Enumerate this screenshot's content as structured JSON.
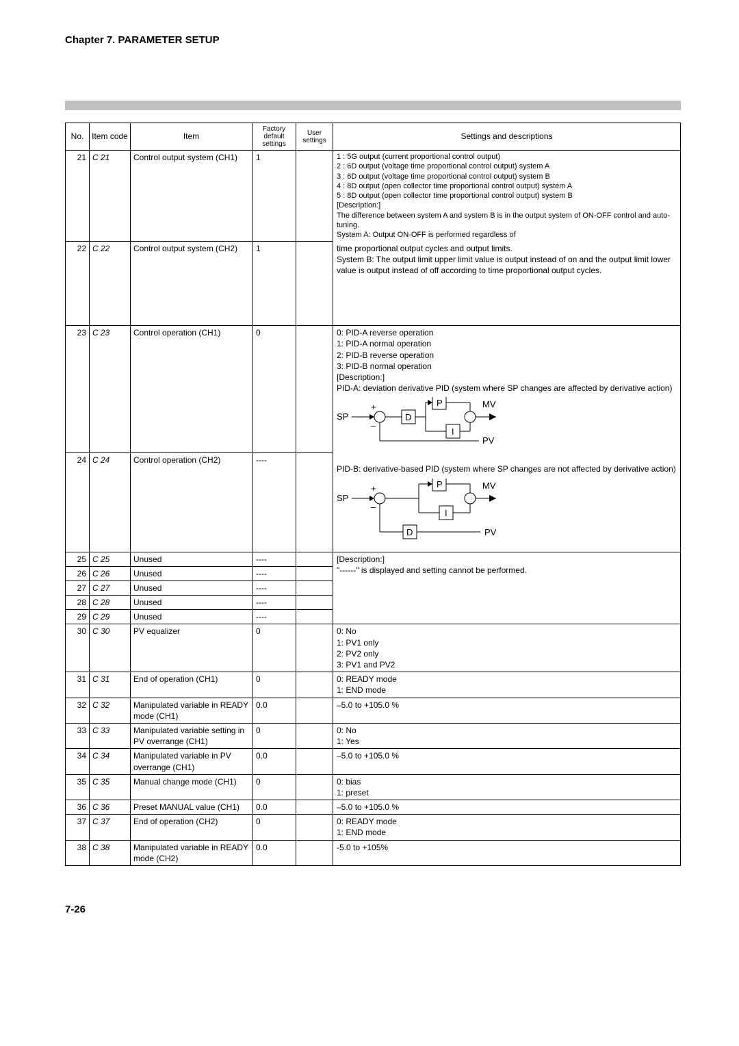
{
  "chapter_title": "Chapter 7. PARAMETER SETUP",
  "page_number": "7-26",
  "columns": {
    "no": "No.",
    "code": "Item code",
    "item": "Item",
    "factory": "Factory default settings",
    "user": "User settings",
    "desc": "Settings and descriptions"
  },
  "rows": [
    {
      "no": "21",
      "code": "C 21",
      "item": "Control output system (CH1)",
      "factory": "1",
      "desc": "1 : 5G output (current proportional control output)\n2 : 6D output (voltage time proportional control output) system A\n3 : 6D output (voltage time proportional control output) system B\n4 : 8D output (open collector time proportional control output) system A\n5 : 8D output (open collector time proportional control output) system B\n[Description:]\nThe difference between system A and system B is in the output system of ON-OFF control and auto-tuning.\nSystem A: Output ON-OFF is performed regardless of"
    },
    {
      "no": "22",
      "code": "C 22",
      "item": "Control output system (CH2)",
      "factory": "1",
      "desc": "time proportional output cycles and output limits.\nSystem B: The output limit upper limit value is output instead of on and the output limit lower value is output instead of off according to time proportional output cycles.",
      "mergeDescTop": true,
      "tall": true
    },
    {
      "no": "23",
      "code": "C 23",
      "item": "Control operation (CH1)",
      "factory": "0",
      "desc": "0: PID-A reverse operation\n1: PID-A normal operation\n2: PID-B reverse operation\n3: PID-B normal operation\n[Description:]\nPID-A: deviation derivative PID (system where SP changes are affected by derivative action)",
      "diagram": "A"
    },
    {
      "no": "24",
      "code": "C 24",
      "item": "Control operation (CH2)",
      "factory": "----",
      "desc": "PID-B: derivative-based PID (system where SP changes are not affected by derivative action)",
      "mergeDescTop": true,
      "diagram": "B",
      "tall2": true
    },
    {
      "no": "25",
      "code": "C 25",
      "item": "Unused",
      "factory": "----",
      "desc": "[Description:]\n\"------\" is displayed and setting cannot be performed.",
      "descSpan": 5
    },
    {
      "no": "26",
      "code": "C 26",
      "item": "Unused",
      "factory": "----",
      "noDesc": true
    },
    {
      "no": "27",
      "code": "C 27",
      "item": "Unused",
      "factory": "----",
      "noDesc": true
    },
    {
      "no": "28",
      "code": "C 28",
      "item": "Unused",
      "factory": "----",
      "noDesc": true
    },
    {
      "no": "29",
      "code": "C 29",
      "item": "Unused",
      "factory": "----",
      "noDesc": true
    },
    {
      "no": "30",
      "code": "C 30",
      "item": "PV equalizer",
      "factory": "0",
      "desc": "0: No\n1: PV1 only\n2: PV2 only\n3: PV1 and PV2"
    },
    {
      "no": "31",
      "code": "C 31",
      "item": "End of operation (CH1)",
      "factory": "0",
      "desc": "0: READY mode\n1: END mode"
    },
    {
      "no": "32",
      "code": "C 32",
      "item": "Manipulated variable in READY mode (CH1)",
      "factory": "0.0",
      "desc": "–5.0 to +105.0 %"
    },
    {
      "no": "33",
      "code": "C 33",
      "item": "Manipulated variable setting in PV overrange (CH1)",
      "factory": "0",
      "desc": "0: No\n1: Yes"
    },
    {
      "no": "34",
      "code": "C 34",
      "item": "Manipulated variable in PV overrange (CH1)",
      "factory": "0.0",
      "desc": "–5.0 to +105.0 %"
    },
    {
      "no": "35",
      "code": "C 35",
      "item": "Manual change mode (CH1)",
      "factory": "0",
      "desc": "0: bias\n1: preset"
    },
    {
      "no": "36",
      "code": "C 36",
      "item": "Preset MANUAL value (CH1)",
      "factory": "0.0",
      "desc": "–5.0 to +105.0 %"
    },
    {
      "no": "37",
      "code": "C 37",
      "item": "End of operation (CH2)",
      "factory": "0",
      "desc": "0: READY mode\n1: END mode"
    },
    {
      "no": "38",
      "code": "C 38",
      "item": "Manipulated variable in READY mode (CH2)",
      "factory": "0.0",
      "desc": "-5.0 to +105%",
      "last": true
    }
  ],
  "diagram_labels": {
    "SP": "SP",
    "MV": "MV",
    "PV": "PV",
    "P": "P",
    "I": "I",
    "D": "D",
    "plus": "+",
    "minus": "–"
  }
}
